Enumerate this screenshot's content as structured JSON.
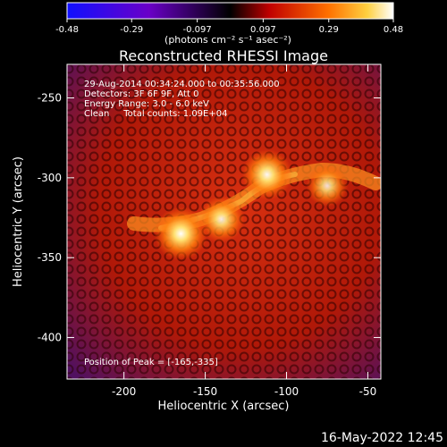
{
  "colorbar": {
    "ticks": [
      -0.48,
      -0.29,
      -0.097,
      0.097,
      0.29,
      0.48
    ],
    "tick_labels": [
      "-0.48",
      "-0.29",
      "-0.097",
      "0.097",
      "0.29",
      "0.48"
    ],
    "unit_label": "(photons cm⁻² s⁻¹ asec⁻²)",
    "range": [
      -0.48,
      0.48
    ]
  },
  "chart_data": {
    "type": "heatmap",
    "title": "Reconstructed RHESSI Image",
    "xlabel": "Heliocentric X (arcsec)",
    "ylabel": "Heliocentric Y (arcsec)",
    "xlim": [
      -235,
      -42
    ],
    "ylim": [
      -426,
      -229
    ],
    "xticks": [
      -200,
      -150,
      -100,
      -50
    ],
    "yticks": [
      -250,
      -300,
      -350,
      -400
    ],
    "xtick_labels": [
      "-200",
      "-150",
      "-100",
      "-50"
    ],
    "ytick_labels": [
      "-250",
      "-300",
      "-350",
      "-400"
    ],
    "annotations": [
      "29-Aug-2014 00:34:24.000 to 00:35:56.000",
      "Detectors: 3F 6F 9F, Att 0",
      "Energy Range: 3.0 - 6.0 keV",
      "Clean     Total counts: 1.09E+04"
    ],
    "peak_text": "Position of Peak = [-165,-335]",
    "sources": [
      {
        "x": -165,
        "y": -335,
        "intensity": 1.0
      },
      {
        "x": -112,
        "y": -298,
        "intensity": 0.9
      },
      {
        "x": -140,
        "y": -326,
        "intensity": 0.75
      },
      {
        "x": -75,
        "y": -305,
        "intensity": 0.6
      }
    ]
  },
  "timestamp": "16-May-2022 12:45"
}
